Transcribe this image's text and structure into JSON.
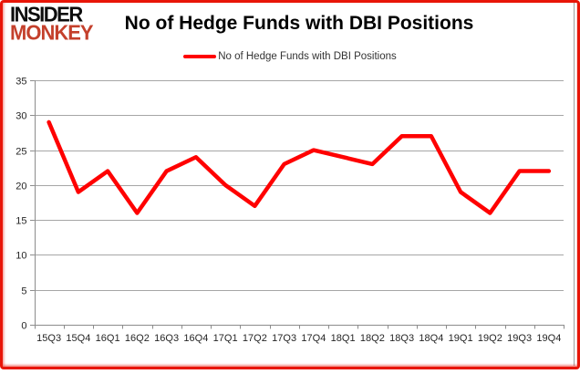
{
  "logo": {
    "line1": "INSIDER",
    "line2": "MONKEY",
    "accent_color": "#c4402c"
  },
  "title": "No of Hedge Funds with DBI Positions",
  "legend": {
    "label": "No of Hedge Funds with DBI Positions",
    "swatch_color": "#ff0000"
  },
  "chart_data": {
    "type": "line",
    "title": "No of Hedge Funds with DBI Positions",
    "categories": [
      "15Q3",
      "15Q4",
      "16Q1",
      "16Q2",
      "16Q3",
      "16Q4",
      "17Q1",
      "17Q2",
      "17Q3",
      "17Q4",
      "18Q1",
      "18Q2",
      "18Q3",
      "18Q4",
      "19Q1",
      "19Q2",
      "19Q3",
      "19Q4"
    ],
    "series": [
      {
        "name": "No of Hedge Funds with DBI Positions",
        "color": "#ff0000",
        "values": [
          29,
          19,
          22,
          16,
          22,
          24,
          20,
          17,
          23,
          25,
          24,
          23,
          27,
          27,
          19,
          16,
          22,
          22
        ]
      }
    ],
    "xlabel": "",
    "ylabel": "",
    "ylim": [
      0,
      35
    ],
    "yticks": [
      0,
      5,
      10,
      15,
      20,
      25,
      30,
      35
    ],
    "grid": "horizontal",
    "legend_position": "top"
  },
  "colors": {
    "line": "#ff0000",
    "gridline": "#a6a6a6",
    "axis": "#8c8c8c",
    "tick_label": "#262626",
    "frame": "#e81508",
    "chart_border": "#9d9d9d"
  }
}
